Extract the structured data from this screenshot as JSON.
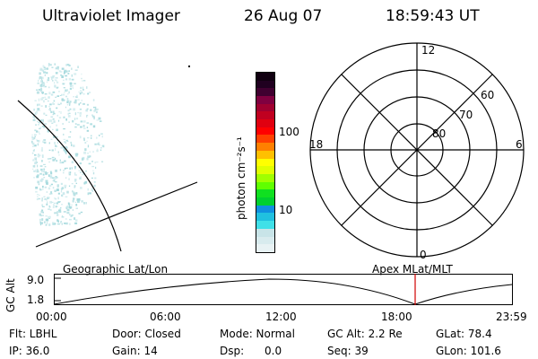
{
  "header": {
    "instrument": "Ultraviolet Imager",
    "date": "26 Aug 07",
    "time": "18:59:43 UT"
  },
  "colorbar": {
    "unit_label": "photon cm⁻²s⁻¹",
    "tick_100": "100",
    "tick_10": "10",
    "colors": [
      "#e8f2f4",
      "#d8ebee",
      "#c8e4e8",
      "#40e0e8",
      "#20c0e0",
      "#1090e0",
      "#00d030",
      "#10e020",
      "#60ff00",
      "#a0ff00",
      "#e0ff00",
      "#ffff00",
      "#ffc000",
      "#ff8000",
      "#ff4000",
      "#ff0000",
      "#e00010",
      "#c00020",
      "#a00030",
      "#800040",
      "#400030",
      "#200020",
      "#100010"
    ]
  },
  "polar": {
    "label_top": "12",
    "label_bottom": "0",
    "label_left": "18",
    "label_right": "6",
    "lat_60": "60",
    "lat_70": "70",
    "lat_80": "80"
  },
  "timeline": {
    "axis_label": "GC Alt",
    "tick_high": "9.0",
    "tick_low": "1.8",
    "left_title": "Geographic Lat/Lon",
    "right_title": "Apex MLat/MLT",
    "times": [
      "00:00",
      "06:00",
      "12:00",
      "18:00",
      "23:59"
    ],
    "marker_color": "#d00000"
  },
  "info": {
    "filter": "Flt: LBHL",
    "door": "Door: Closed",
    "mode": "Mode: Normal",
    "gc_alt": "GC Alt: 2.2 Re",
    "glat": "GLat:  78.4",
    "ip": "IP: 36.0",
    "gain": "Gain: 14",
    "dsp": "Dsp:      0.0",
    "seq": "Seq: 39",
    "glon": "GLon: 101.6"
  }
}
